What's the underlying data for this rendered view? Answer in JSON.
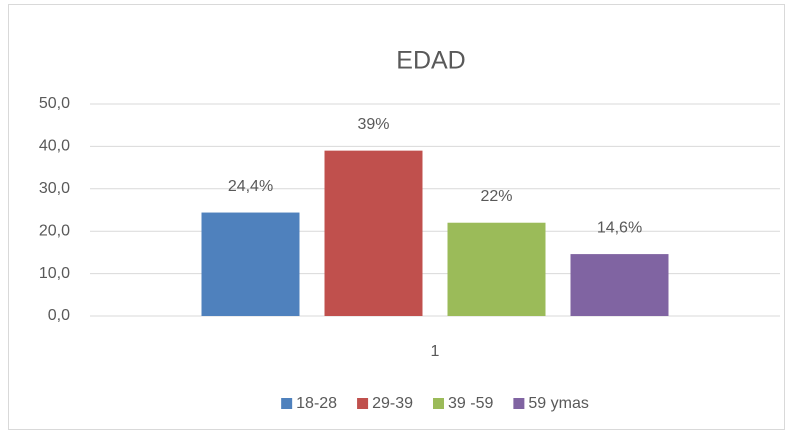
{
  "chart_data": {
    "type": "bar",
    "title": "EDAD",
    "categories": [
      "1"
    ],
    "series": [
      {
        "name": "18-28",
        "color": "#4f81bd",
        "values": [
          24.4
        ],
        "value_labels": [
          "24,4%"
        ]
      },
      {
        "name": "29-39",
        "color": "#c0504d",
        "values": [
          39
        ],
        "value_labels": [
          "39%"
        ]
      },
      {
        "name": "39 -59",
        "color": "#9bbb59",
        "values": [
          22
        ],
        "value_labels": [
          "22%"
        ]
      },
      {
        "name": "59 ymas",
        "color": "#8064a2",
        "values": [
          14.6
        ],
        "value_labels": [
          "14,6%"
        ]
      }
    ],
    "ylim": [
      0,
      50
    ],
    "yticks": [
      {
        "value": 0,
        "label": "0,0"
      },
      {
        "value": 10,
        "label": "10,0"
      },
      {
        "value": 20,
        "label": "20,0"
      },
      {
        "value": 30,
        "label": "30,0"
      },
      {
        "value": 40,
        "label": "40,0"
      },
      {
        "value": 50,
        "label": "50,0"
      }
    ],
    "grid": true,
    "legend": "bottom"
  }
}
